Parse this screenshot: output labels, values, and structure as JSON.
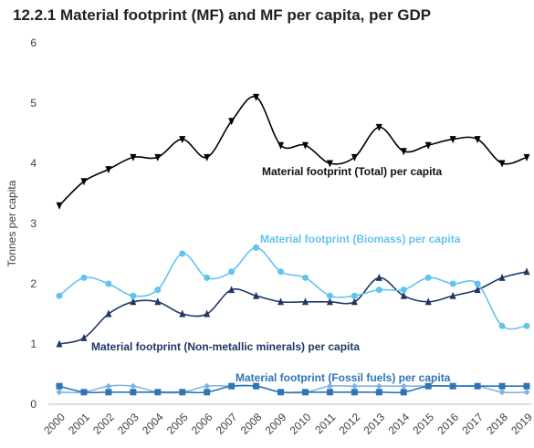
{
  "chart_data": {
    "type": "line",
    "title": "12.2.1 Material footprint (MF) and MF per capita, per GDP",
    "y_label": "Tonnes per capita",
    "x": [
      "2000",
      "2001",
      "2002",
      "2003",
      "2004",
      "2005",
      "2006",
      "2007",
      "2008",
      "2009",
      "2010",
      "2011",
      "2012",
      "2013",
      "2014",
      "2015",
      "2016",
      "2017",
      "2018",
      "2019"
    ],
    "ylim": [
      0,
      6
    ],
    "yticks": [
      0,
      1,
      2,
      3,
      4,
      5,
      6
    ],
    "series": [
      {
        "name": "Material footprint (Total) per capita",
        "color": "#000000",
        "marker": "triangle-down",
        "values": [
          3.3,
          3.7,
          3.9,
          4.1,
          4.1,
          4.4,
          4.1,
          4.7,
          5.1,
          4.3,
          4.3,
          4.0,
          4.1,
          4.6,
          4.2,
          4.3,
          4.4,
          4.4,
          4.0,
          4.1
        ]
      },
      {
        "name": "Material footprint (Biomass) per capita",
        "color": "#63c3ee",
        "marker": "circle",
        "values": [
          1.8,
          2.1,
          2.0,
          1.8,
          1.9,
          2.5,
          2.1,
          2.2,
          2.6,
          2.2,
          2.1,
          1.8,
          1.8,
          1.9,
          1.9,
          2.1,
          2.0,
          2.0,
          1.3,
          1.3
        ]
      },
      {
        "name": "Material footprint (Non-metallic minerals) per capita",
        "color": "#1f3864",
        "marker": "triangle",
        "values": [
          1.0,
          1.1,
          1.5,
          1.7,
          1.7,
          1.5,
          1.5,
          1.9,
          1.8,
          1.7,
          1.7,
          1.7,
          1.7,
          2.1,
          1.8,
          1.7,
          1.8,
          1.9,
          2.1,
          2.2
        ]
      },
      {
        "name": "Material footprint (Fossil fuels) per capita",
        "color": "#2e75b6",
        "marker": "square",
        "values": [
          0.3,
          0.2,
          0.2,
          0.2,
          0.2,
          0.2,
          0.2,
          0.3,
          0.3,
          0.2,
          0.2,
          0.2,
          0.2,
          0.2,
          0.2,
          0.3,
          0.3,
          0.3,
          0.3,
          0.3
        ]
      },
      {
        "color": "#7fb4e0",
        "marker": "diamond",
        "values": [
          0.2,
          0.2,
          0.3,
          0.3,
          0.2,
          0.2,
          0.3,
          0.3,
          0.3,
          0.2,
          0.2,
          0.3,
          0.3,
          0.3,
          0.3,
          0.3,
          0.3,
          0.3,
          0.2,
          0.2
        ]
      }
    ]
  }
}
